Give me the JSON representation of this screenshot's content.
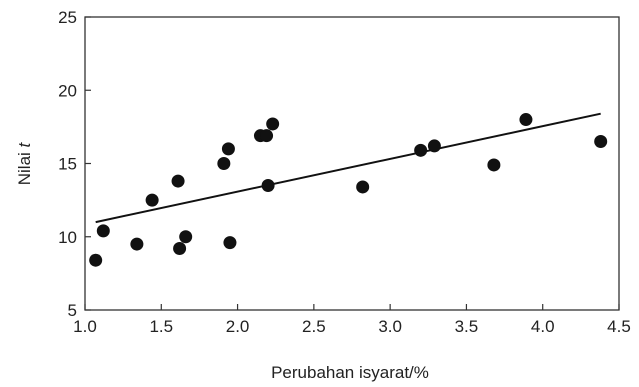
{
  "chart_data": {
    "type": "scatter",
    "title": "",
    "xlabel": "Perubahan isyarat/%",
    "ylabel_main": "Nilai ",
    "ylabel_italic": "t",
    "xlim": [
      1.0,
      4.5
    ],
    "ylim": [
      5,
      25
    ],
    "xticks": [
      1.0,
      1.5,
      2.0,
      2.5,
      3.0,
      3.5,
      4.0,
      4.5
    ],
    "xtick_labels": [
      "1.0",
      "1.5",
      "2.0",
      "2.5",
      "3.0",
      "3.5",
      "4.0",
      "4.5"
    ],
    "yticks": [
      5,
      10,
      15,
      20,
      25
    ],
    "ytick_labels": [
      "5",
      "10",
      "15",
      "20",
      "25"
    ],
    "grid": false,
    "series": [
      {
        "points": [
          {
            "x": 1.07,
            "y": 8.4
          },
          {
            "x": 1.12,
            "y": 10.4
          },
          {
            "x": 1.34,
            "y": 9.5
          },
          {
            "x": 1.44,
            "y": 12.5
          },
          {
            "x": 1.61,
            "y": 13.8
          },
          {
            "x": 1.62,
            "y": 9.2
          },
          {
            "x": 1.66,
            "y": 10.0
          },
          {
            "x": 1.91,
            "y": 15.0
          },
          {
            "x": 1.94,
            "y": 16.0
          },
          {
            "x": 1.95,
            "y": 9.6
          },
          {
            "x": 2.15,
            "y": 16.9
          },
          {
            "x": 2.19,
            "y": 16.9
          },
          {
            "x": 2.2,
            "y": 13.5
          },
          {
            "x": 2.23,
            "y": 17.7
          },
          {
            "x": 2.82,
            "y": 13.4
          },
          {
            "x": 3.2,
            "y": 15.9
          },
          {
            "x": 3.29,
            "y": 16.2
          },
          {
            "x": 3.68,
            "y": 14.9
          },
          {
            "x": 3.89,
            "y": 18.0
          },
          {
            "x": 4.38,
            "y": 16.5
          }
        ]
      }
    ],
    "trendline": {
      "x": [
        1.07,
        4.38
      ],
      "y": [
        11.0,
        18.4
      ]
    },
    "colors": {
      "marker": "#111111",
      "line": "#111111",
      "axis": "#333333"
    }
  }
}
